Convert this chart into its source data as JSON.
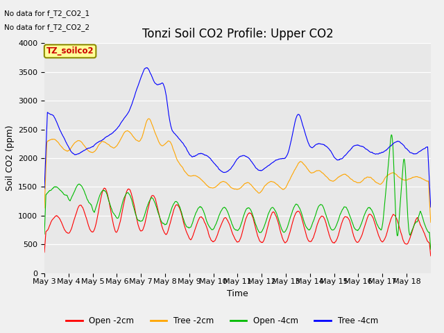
{
  "title": "Tonzi Soil CO2 Profile: Upper CO2",
  "xlabel": "Time",
  "ylabel": "Soil CO2 (ppm)",
  "ylim": [
    0,
    4000
  ],
  "yticks": [
    0,
    500,
    1000,
    1500,
    2000,
    2500,
    3000,
    3500,
    4000
  ],
  "xtick_labels": [
    "May 3",
    "May 4",
    "May 5",
    "May 6",
    "May 7",
    "May 8",
    "May 9",
    "May 10",
    "May 11",
    "May 12",
    "May 13",
    "May 14",
    "May 15",
    "May 16",
    "May 17",
    "May 18"
  ],
  "no_data_text": [
    "No data for f_T2_CO2_1",
    "No data for f_T2_CO2_2"
  ],
  "legend_label": "TZ_soilco2",
  "legend_entries": [
    "Open -2cm",
    "Tree -2cm",
    "Open -4cm",
    "Tree -4cm"
  ],
  "legend_colors": [
    "#ff0000",
    "#ffa500",
    "#00bb00",
    "#0000ff"
  ],
  "line_colors": [
    "#ff0000",
    "#ffa500",
    "#00bb00",
    "#0000ff"
  ],
  "fig_bg": "#f0f0f0",
  "ax_bg": "#e8e8e8",
  "title_fontsize": 12,
  "axis_fontsize": 9,
  "tick_fontsize": 8
}
